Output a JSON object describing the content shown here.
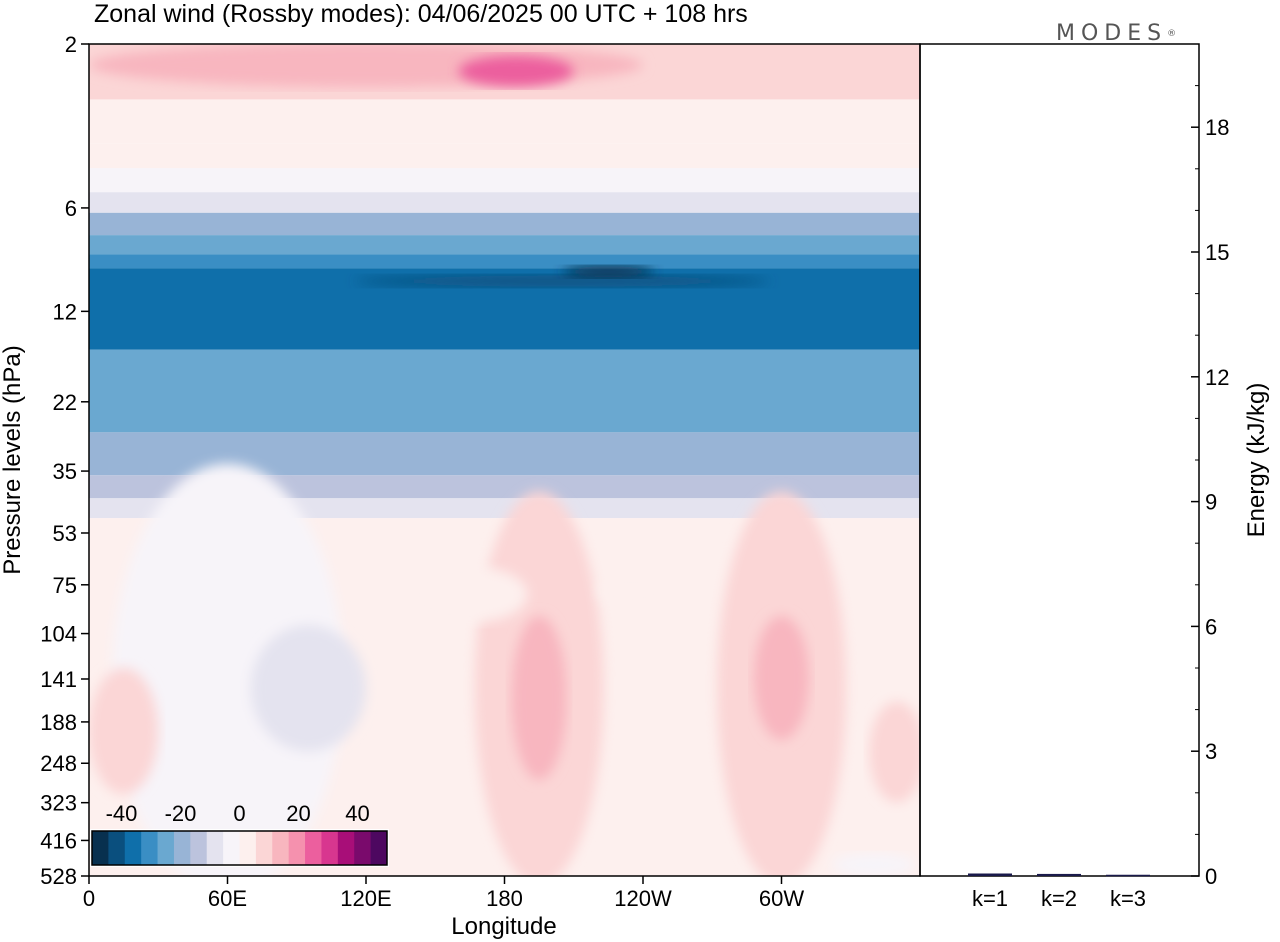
{
  "title": "Zonal wind (Rossby modes):  04/06/2025  00 UTC  + 108 hrs",
  "logo_text": "MODES",
  "logo_mark": "®",
  "colors": {
    "frame": "#000000",
    "background": "#ffffff",
    "energy_bar": "#1a1a4a"
  },
  "chart_data": [
    {
      "type": "heatmap",
      "title": "Zonal wind (Rossby modes):  04/06/2025  00 UTC  + 108 hrs",
      "xlabel": "Longitude",
      "ylabel": "Pressure levels (hPa)",
      "x_ticks": [
        "0",
        "60E",
        "120E",
        "180",
        "120W",
        "60W"
      ],
      "y_ticks": [
        "2",
        "6",
        "12",
        "22",
        "35",
        "53",
        "75",
        "104",
        "141",
        "188",
        "248",
        "323",
        "416",
        "528"
      ],
      "y_scale": "log-pressure (top 2 hPa, bottom 528 hPa)",
      "grid": false,
      "colorbar": {
        "placement": "bottom-left",
        "ticks": [
          "-40",
          "-20",
          "0",
          "20",
          "40"
        ],
        "range": [
          -50,
          50
        ],
        "colors": [
          "#08304f",
          "#0a4f7e",
          "#0f6faa",
          "#3a8ec4",
          "#6aa8d0",
          "#98b4d6",
          "#bcc3dd",
          "#e4e3ef",
          "#f7f4f9",
          "#fdf0ee",
          "#fbd6d6",
          "#f8b6bf",
          "#f591ae",
          "#ec5f9e",
          "#d8368f",
          "#a80e78",
          "#7a0a6c",
          "#4d0860"
        ]
      },
      "bands": [
        {
          "p_top": 2,
          "p_bottom": 2.9,
          "u": 10
        },
        {
          "p_top": 2.9,
          "p_bottom": 3.9,
          "u": 5
        },
        {
          "p_top": 3.9,
          "p_bottom": 4.6,
          "u": 0
        },
        {
          "p_top": 4.6,
          "p_bottom": 5.4,
          "u": -5
        },
        {
          "p_top": 5.4,
          "p_bottom": 6.2,
          "u": -10
        },
        {
          "p_top": 6.2,
          "p_bottom": 7.2,
          "u": -20
        },
        {
          "p_top": 7.2,
          "p_bottom": 8.2,
          "u": -25
        },
        {
          "p_top": 8.2,
          "p_bottom": 9.0,
          "u": -30
        },
        {
          "p_top": 9.0,
          "p_bottom": 15.5,
          "u": -35
        },
        {
          "p_top": 15.5,
          "p_bottom": 27,
          "u": -25
        },
        {
          "p_top": 27,
          "p_bottom": 36,
          "u": -20
        },
        {
          "p_top": 36,
          "p_bottom": 42,
          "u": -15
        },
        {
          "p_top": 42,
          "p_bottom": 48,
          "u": -10
        },
        {
          "p_top": 48,
          "p_bottom": 58,
          "u": 0
        },
        {
          "p_top": 58,
          "p_bottom": 528,
          "u": 3
        }
      ],
      "features": [
        {
          "lon": 120,
          "lat_p": 2.3,
          "u": 15,
          "w": 120,
          "h": 0.8
        },
        {
          "lon": 185,
          "lat_p": 2.4,
          "u": 25,
          "w": 25,
          "h": 0.5
        },
        {
          "lon": 205,
          "lat_p": 9.8,
          "u": -40,
          "w": 90,
          "h": 0.7
        },
        {
          "lon": 225,
          "lat_p": 9.2,
          "u": -45,
          "w": 20,
          "h": 0.3
        },
        {
          "lon": 60,
          "lat_p": 140,
          "u": -5,
          "w": 50,
          "h": 250
        },
        {
          "lon": 95,
          "lat_p": 150,
          "u": -10,
          "w": 25,
          "h": 120
        },
        {
          "lon": 195,
          "lat_p": 150,
          "u": 10,
          "w": 28,
          "h": 260
        },
        {
          "lon": 195,
          "lat_p": 160,
          "u": 15,
          "w": 12,
          "h": 160
        },
        {
          "lon": 300,
          "lat_p": 150,
          "u": 10,
          "w": 28,
          "h": 260
        },
        {
          "lon": 300,
          "lat_p": 140,
          "u": 15,
          "w": 12,
          "h": 110
        },
        {
          "lon": 15,
          "lat_p": 200,
          "u": 10,
          "w": 15,
          "h": 160
        },
        {
          "lon": 165,
          "lat_p": 80,
          "u": 5,
          "w": 25,
          "h": 30
        },
        {
          "lon": 235,
          "lat_p": 78,
          "u": 5,
          "w": 15,
          "h": 15
        },
        {
          "lon": 350,
          "lat_p": 230,
          "u": 10,
          "w": 12,
          "h": 150
        },
        {
          "lon": 340,
          "lat_p": 490,
          "u": -5,
          "w": 18,
          "h": 80
        }
      ]
    },
    {
      "type": "bar",
      "ylabel": "Energy (kJ/kg)",
      "categories": [
        "k=1",
        "k=2",
        "k=3"
      ],
      "values": [
        0.06,
        0.05,
        0.03
      ],
      "ylim": [
        0,
        20
      ],
      "y_ticks": [
        "0",
        "3",
        "6",
        "9",
        "12",
        "15",
        "18"
      ]
    }
  ]
}
